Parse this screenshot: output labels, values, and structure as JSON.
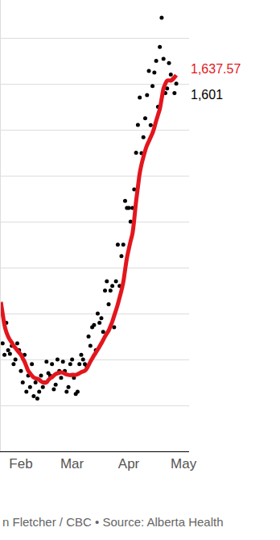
{
  "chart_data": {
    "type": "line",
    "x": [
      21,
      22,
      23,
      24,
      25,
      26,
      27,
      28,
      29,
      30,
      31,
      32,
      33,
      34,
      35,
      36,
      37,
      38,
      39,
      40,
      41,
      42,
      43,
      44,
      45,
      46,
      47,
      48,
      49,
      50,
      51,
      52,
      53,
      54,
      55,
      56,
      57,
      58,
      59,
      60,
      61,
      62,
      63,
      64,
      65,
      66,
      67,
      68,
      69,
      70,
      71,
      72,
      73,
      74,
      75,
      76,
      77,
      78,
      79,
      80,
      81,
      82,
      83,
      84,
      85,
      86,
      87,
      88,
      89,
      90,
      91,
      92,
      93,
      94,
      95,
      96,
      97,
      98,
      99,
      100,
      101,
      102,
      103,
      104,
      105,
      106,
      107,
      108,
      109,
      110,
      111,
      112,
      113,
      114,
      115,
      116,
      117
    ],
    "series": [
      {
        "type": "scatter",
        "marker": "circle",
        "color": "#000000",
        "values": [
          640,
          470,
          420,
          560,
          440,
          425,
          460,
          380,
          400,
          470,
          440,
          350,
          300,
          420,
          260,
          330,
          280,
          380,
          240,
          300,
          230,
          260,
          330,
          280,
          300,
          390,
          340,
          330,
          380,
          270,
          290,
          400,
          350,
          320,
          390,
          350,
          260,
          280,
          380,
          400,
          320,
          250,
          260,
          380,
          420,
          400,
          380,
          370,
          500,
          460,
          540,
          550,
          440,
          600,
          560,
          580,
          520,
          700,
          740,
          640,
          700,
          720,
          540,
          740,
          900,
          720,
          850,
          900,
          1090,
          1060,
          1060,
          1000,
          1060,
          1140,
          1300,
          1421,
          1540,
          1298,
          1368,
          1450,
          1551,
          1656,
          1420,
          1590,
          1649,
          1700,
          1500,
          1761,
          1888,
          1709,
          1560,
          1580,
          1690,
          1640,
          1620,
          1560,
          1601
        ]
      },
      {
        "type": "line",
        "line_style": "solid",
        "color": "#e3161d",
        "values": [
          650,
          600,
          550,
          520,
          500,
          485,
          474,
          460,
          450,
          440,
          430,
          421,
          405,
          390,
          370,
          351,
          340,
          330,
          322,
          318,
          316,
          312,
          305,
          300,
          298,
          300,
          310,
          318,
          323,
          330,
          336,
          340,
          342,
          344,
          342,
          338,
          335,
          333,
          332,
          333,
          333,
          333,
          336,
          340,
          345,
          348,
          351,
          360,
          375,
          390,
          404,
          418,
          430,
          443,
          456,
          470,
          485,
          500,
          513,
          526,
          545,
          565,
          590,
          614,
          640,
          670,
          700,
          737,
          790,
          842,
          880,
          915,
          947,
          1010,
          1088,
          1150,
          1211,
          1250,
          1281,
          1310,
          1333,
          1350,
          1368,
          1386,
          1410,
          1439,
          1465,
          1491,
          1535,
          1579,
          1600,
          1614,
          1615,
          1614,
          1620,
          1628,
          1637.57
        ]
      }
    ],
    "xlim": [
      21,
      124
    ],
    "xticks": [
      {
        "value": 32,
        "label": "Feb"
      },
      {
        "value": 60,
        "label": "Mar"
      },
      {
        "value": 91,
        "label": "Apr"
      },
      {
        "value": 121,
        "label": "May"
      }
    ],
    "ylim": [
      0,
      1965
    ],
    "yticks": [
      0,
      200,
      400,
      600,
      800,
      1000,
      1200,
      1400,
      1600,
      1800
    ],
    "grid": true,
    "tick_labels": "x",
    "annotations": [
      {
        "text": "1,637.57",
        "x": 117,
        "y": 1637.57,
        "color": "#e3161d"
      },
      {
        "text": "1,601",
        "x": 117,
        "y": 1601,
        "color": "#000000"
      }
    ],
    "source": "n Fletcher / CBC • Source: Alberta Health"
  }
}
